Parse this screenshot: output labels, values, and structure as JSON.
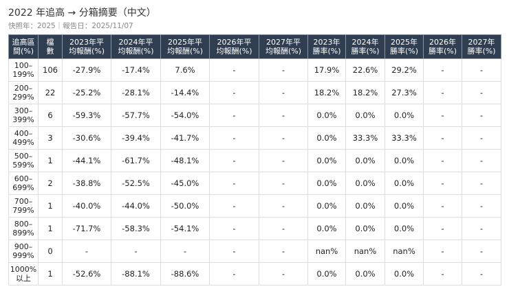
{
  "header": {
    "title": "2022 年追高 → 分箱摘要（中文）",
    "subtitle": "快照年：2025｜報告日：2025/11/07"
  },
  "table": {
    "columns": [
      [
        "追高區",
        "間(%)"
      ],
      [
        "檔",
        "數"
      ],
      [
        "2023年平",
        "均報酬(%)"
      ],
      [
        "2024年平",
        "均報酬(%)"
      ],
      [
        "2025年平",
        "均報酬(%)"
      ],
      [
        "2026年平",
        "均報酬(%)"
      ],
      [
        "2027年平",
        "均報酬(%)"
      ],
      [
        "2023年",
        "勝率(%)"
      ],
      [
        "2024年",
        "勝率(%)"
      ],
      [
        "2025年",
        "勝率(%)"
      ],
      [
        "2026年",
        "勝率(%)"
      ],
      [
        "2027年",
        "勝率(%)"
      ]
    ],
    "rows": [
      [
        [
          "100–",
          "199%"
        ],
        "106",
        "-27.9%",
        "-17.4%",
        "7.6%",
        "-",
        "-",
        "17.9%",
        "22.6%",
        "29.2%",
        "-",
        "-"
      ],
      [
        [
          "200–",
          "299%"
        ],
        "22",
        "-25.2%",
        "-28.1%",
        "-14.4%",
        "-",
        "-",
        "18.2%",
        "18.2%",
        "27.3%",
        "-",
        "-"
      ],
      [
        [
          "300–",
          "399%"
        ],
        "6",
        "-59.3%",
        "-57.7%",
        "-54.0%",
        "-",
        "-",
        "0.0%",
        "0.0%",
        "0.0%",
        "-",
        "-"
      ],
      [
        [
          "400–",
          "499%"
        ],
        "3",
        "-30.6%",
        "-39.4%",
        "-41.7%",
        "-",
        "-",
        "0.0%",
        "33.3%",
        "33.3%",
        "-",
        "-"
      ],
      [
        [
          "500–",
          "599%"
        ],
        "1",
        "-44.1%",
        "-61.7%",
        "-48.1%",
        "-",
        "-",
        "0.0%",
        "0.0%",
        "0.0%",
        "-",
        "-"
      ],
      [
        [
          "600–",
          "699%"
        ],
        "2",
        "-38.8%",
        "-52.5%",
        "-45.0%",
        "-",
        "-",
        "0.0%",
        "0.0%",
        "0.0%",
        "-",
        "-"
      ],
      [
        [
          "700–",
          "799%"
        ],
        "1",
        "-40.0%",
        "-44.0%",
        "-50.0%",
        "-",
        "-",
        "0.0%",
        "0.0%",
        "0.0%",
        "-",
        "-"
      ],
      [
        [
          "800–",
          "899%"
        ],
        "1",
        "-71.7%",
        "-58.3%",
        "-54.1%",
        "-",
        "-",
        "0.0%",
        "0.0%",
        "0.0%",
        "-",
        "-"
      ],
      [
        [
          "900–",
          "999%"
        ],
        "0",
        "-",
        "-",
        "-",
        "-",
        "-",
        "nan%",
        "nan%",
        "nan%",
        "-",
        "-"
      ],
      [
        [
          "1000%",
          "以上"
        ],
        "1",
        "-52.6%",
        "-88.1%",
        "-88.6%",
        "-",
        "-",
        "0.0%",
        "0.0%",
        "0.0%",
        "-",
        "-"
      ]
    ]
  }
}
